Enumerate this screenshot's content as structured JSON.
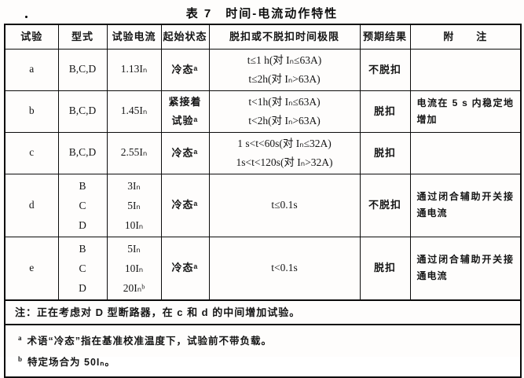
{
  "title": "表 7　时间-电流动作特性",
  "table": {
    "headers": {
      "test": "试验",
      "type": "型式",
      "current": "试验电流",
      "state": "起始状态",
      "limit": "脱扣或不脱扣时间极限",
      "result": "预期结果",
      "remark": "附　　注"
    },
    "rows": [
      {
        "test": "a",
        "type": [
          "B,C,D"
        ],
        "current": [
          "1.13Iₙ"
        ],
        "state": [
          "冷态ᵃ"
        ],
        "limits": [
          "t≤1 h(对 Iₙ≤63A)",
          "t≤2h(对 Iₙ>63A)"
        ],
        "result": "不脱扣",
        "remark": ""
      },
      {
        "test": "b",
        "type": [
          "B,C,D"
        ],
        "current": [
          "1.45Iₙ"
        ],
        "state": [
          "紧接着",
          "试验ᵃ"
        ],
        "limits": [
          "t<1h(对 Iₙ≤63A)",
          "t<2h(对 Iₙ>63A)"
        ],
        "result": "脱扣",
        "remark": "电流在 5 s 内稳定地增加"
      },
      {
        "test": "c",
        "type": [
          "B,C,D"
        ],
        "current": [
          "2.55Iₙ"
        ],
        "state": [
          "冷态ᵃ"
        ],
        "limits": [
          "1 s<t<60s(对 Iₙ≤32A)",
          "1s<t<120s(对 Iₙ>32A)"
        ],
        "result": "脱扣",
        "remark": ""
      },
      {
        "test": "d",
        "type": [
          "B",
          "C",
          "D"
        ],
        "current": [
          "3Iₙ",
          "5Iₙ",
          "10Iₙ"
        ],
        "state": [
          "冷态ᵃ"
        ],
        "limits": [
          "t≤0.1s"
        ],
        "result": "不脱扣",
        "remark": "通过闭合辅助开关接通电流"
      },
      {
        "test": "e",
        "type": [
          "B",
          "C",
          "D"
        ],
        "current": [
          "5Iₙ",
          "10Iₙ",
          "20Iₙᵇ"
        ],
        "state": [
          "冷态ᵃ"
        ],
        "limits": [
          "t<0.1s"
        ],
        "result": "脱扣",
        "remark": "通过闭合辅助开关接通电流"
      }
    ],
    "note": "注：正在考虑对 D 型断路器，在 c 和 d 的中间增加试验。",
    "footnotes": [
      {
        "marker": "a",
        "text": "术语“冷态”指在基准校准温度下，试验前不带负载。"
      },
      {
        "marker": "b",
        "text": "特定场合为 50Iₙ。"
      }
    ]
  }
}
